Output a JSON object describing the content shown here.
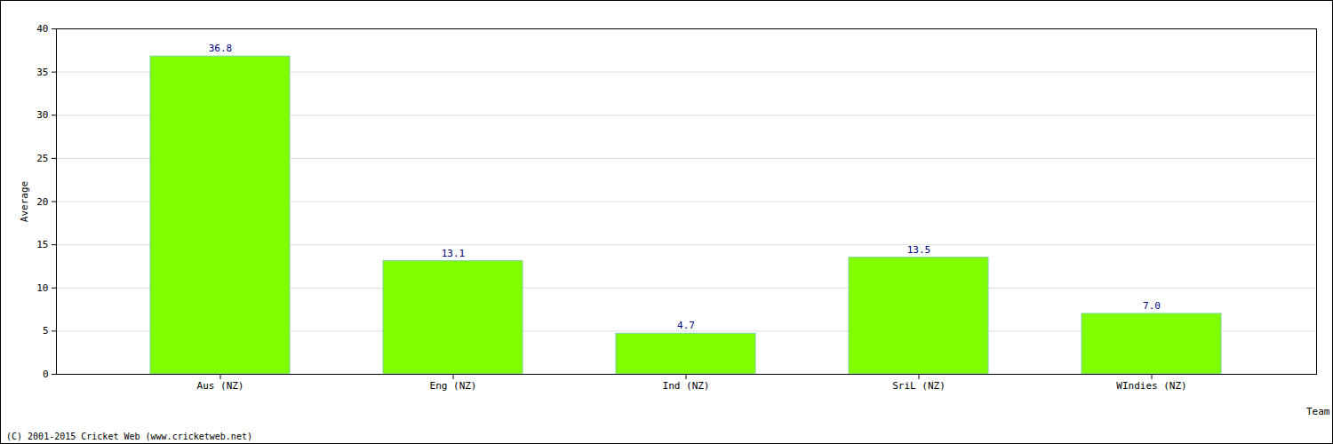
{
  "chart_data": {
    "type": "bar",
    "categories": [
      "Aus (NZ)",
      "Eng (NZ)",
      "Ind (NZ)",
      "SriL (NZ)",
      "WIndies (NZ)"
    ],
    "values": [
      36.8,
      13.1,
      4.7,
      13.5,
      7.0
    ],
    "value_labels": [
      "36.8",
      "13.1",
      "4.7",
      "13.5",
      "7.0"
    ],
    "data_labels": true,
    "color": "#7fff00",
    "x_label": "Team",
    "y_label": "Average",
    "ylim": [
      0,
      40
    ],
    "yticks": [
      0,
      5,
      10,
      15,
      20,
      25,
      30,
      35,
      40
    ],
    "grid": true,
    "caption": "(C) 2001-2015 Cricket Web (www.cricketweb.net)"
  }
}
